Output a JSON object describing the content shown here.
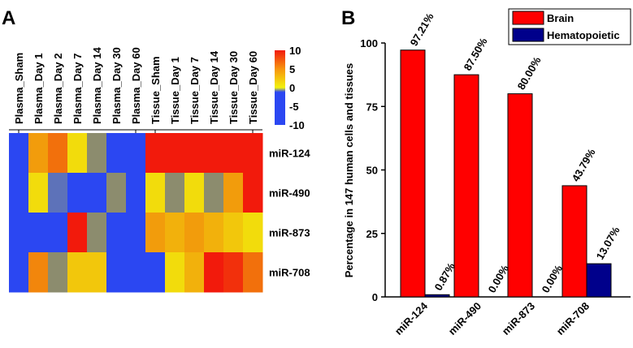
{
  "chart_data": [
    {
      "type": "heatmap",
      "panel_label": "A",
      "columns": [
        "Plasma_Sham",
        "Plasma_Day 1",
        "Plasma_Day 2",
        "Plasma_Day 7",
        "Plasma_Day 14",
        "Plasma_Day 30",
        "Plasma_Day 60",
        "Tissue_Sham",
        "Tissue_Day 1",
        "Tissue_Day 7",
        "Tissue_Day 14",
        "Tissue_Day 30",
        "Tissue_Day 60"
      ],
      "rows": [
        "miR-124",
        "miR-490",
        "miR-873",
        "miR-708"
      ],
      "values": [
        [
          -10,
          4,
          6,
          1,
          -2,
          -10,
          -10,
          10,
          10,
          10,
          10,
          10,
          10
        ],
        [
          -10,
          1,
          -3,
          -8,
          -9,
          -2,
          -6,
          1,
          -2,
          1,
          -2,
          4,
          10
        ],
        [
          -10,
          -6,
          -8,
          10,
          -2,
          -8,
          -7,
          4,
          3,
          4,
          3,
          2,
          1
        ],
        [
          -10,
          5,
          -2,
          2,
          2,
          -10,
          -10,
          -10,
          1,
          3,
          10,
          9,
          6
        ]
      ],
      "colorbar": {
        "ticks": [
          "10",
          "5",
          "0",
          "-5",
          "-10"
        ],
        "min": -10,
        "max": 10
      },
      "colors": {
        "low": "#2b47f2",
        "mid": "#f2f20c",
        "high": "#f21a0c",
        "neutral": "#8c8c6e"
      }
    },
    {
      "type": "bar",
      "panel_label": "B",
      "categories": [
        "miR-124",
        "miR-490",
        "miR-873",
        "miR-708"
      ],
      "series": [
        {
          "name": "Brain",
          "color": "#ff0000",
          "values": [
            97.21,
            87.5,
            80.0,
            43.79
          ],
          "labels": [
            "97.21%",
            "87.50%",
            "80.00%",
            "43.79%"
          ]
        },
        {
          "name": "Hematopoietic",
          "color": "#00008b",
          "values": [
            0.87,
            0.0,
            0.0,
            13.07
          ],
          "labels": [
            "0.87%",
            "0.00%",
            "0.00%",
            "13.07%"
          ]
        }
      ],
      "ylabel": "Percentage in 147 human cells and tissues",
      "ylim": [
        0,
        100
      ],
      "yticks": [
        0,
        25,
        50,
        75,
        100
      ]
    }
  ]
}
